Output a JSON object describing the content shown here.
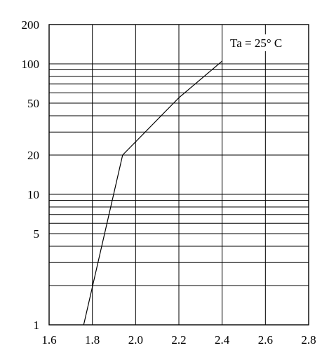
{
  "chart_data": {
    "type": "line",
    "title": "",
    "xlabel": "",
    "ylabel": "",
    "xscale": "linear",
    "yscale": "log",
    "xlim": [
      1.6,
      2.8
    ],
    "ylim": [
      1,
      200
    ],
    "x_ticks": [
      1.6,
      1.8,
      2.0,
      2.2,
      2.4,
      2.6,
      2.8
    ],
    "x_tick_labels": [
      "1.6",
      "1.8",
      "2.0",
      "2.2",
      "2.4",
      "2.6",
      "2.8"
    ],
    "y_ticks": [
      1,
      5,
      10,
      20,
      50,
      100,
      200
    ],
    "y_tick_labels": [
      "1",
      "5",
      "10",
      "20",
      "50",
      "100",
      "200"
    ],
    "y_gridlines": [
      2,
      3,
      4,
      5,
      6,
      7,
      8,
      9,
      10,
      20,
      30,
      40,
      50,
      60,
      70,
      80,
      90,
      100
    ],
    "grid": true,
    "annotation": "Ta = 25° C",
    "series": [
      {
        "x": [
          1.76,
          1.94,
          2.2,
          2.4
        ],
        "y": [
          1,
          20,
          55,
          105
        ]
      }
    ]
  }
}
